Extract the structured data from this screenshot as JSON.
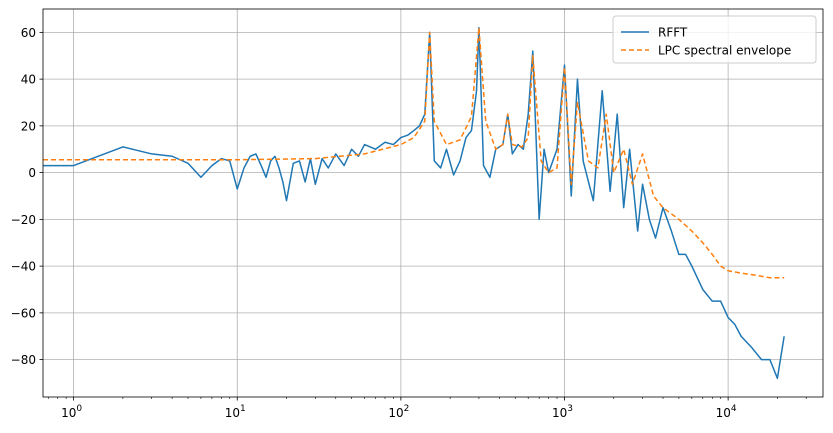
{
  "chart_data": {
    "type": "line",
    "title": "",
    "xlabel": "",
    "ylabel": "",
    "xscale": "log",
    "xlim": [
      0.65,
      38000
    ],
    "ylim": [
      -96,
      70
    ],
    "grid": true,
    "legend_position": "top-right",
    "x_ticks": [
      {
        "value": 1,
        "base": "10",
        "exp": "0"
      },
      {
        "value": 10,
        "base": "10",
        "exp": "1"
      },
      {
        "value": 100,
        "base": "10",
        "exp": "2"
      },
      {
        "value": 1000,
        "base": "10",
        "exp": "3"
      },
      {
        "value": 10000,
        "base": "10",
        "exp": "4"
      }
    ],
    "y_ticks": [
      {
        "value": 60,
        "label": "60"
      },
      {
        "value": 40,
        "label": "40"
      },
      {
        "value": 20,
        "label": "20"
      },
      {
        "value": 0,
        "label": "0"
      },
      {
        "value": -20,
        "label": "−20"
      },
      {
        "value": -40,
        "label": "−40"
      },
      {
        "value": -60,
        "label": "−60"
      },
      {
        "value": -80,
        "label": "−80"
      }
    ],
    "series": [
      {
        "name": "RFFT",
        "color": "#1f77b4",
        "style": "solid",
        "x": [
          0.65,
          1,
          2,
          3,
          4,
          5,
          6,
          7,
          8,
          9,
          10,
          11,
          12,
          13,
          14,
          15,
          16,
          17,
          18,
          19,
          20,
          22,
          24,
          26,
          28,
          30,
          33,
          36,
          40,
          45,
          50,
          55,
          60,
          70,
          80,
          90,
          100,
          110,
          120,
          130,
          140,
          150,
          160,
          175,
          190,
          210,
          230,
          250,
          270,
          290,
          300,
          320,
          350,
          380,
          420,
          450,
          480,
          520,
          560,
          600,
          640,
          700,
          750,
          800,
          900,
          1000,
          1100,
          1200,
          1300,
          1500,
          1700,
          1900,
          2100,
          2300,
          2500,
          2800,
          3000,
          3300,
          3600,
          4000,
          4500,
          5000,
          5500,
          6000,
          7000,
          8000,
          9000,
          10000,
          11000,
          12000,
          14000,
          16000,
          18000,
          20000,
          22000
        ],
        "values": [
          3,
          3,
          11,
          8,
          7,
          4,
          -2,
          3,
          6,
          5,
          -7,
          2,
          7,
          8,
          3,
          -2,
          5,
          7,
          2,
          -4,
          -12,
          4,
          5,
          -4,
          6,
          -5,
          6,
          2,
          8,
          3,
          10,
          7,
          12,
          10,
          13,
          12,
          15,
          16,
          18,
          20,
          25,
          60,
          5,
          2,
          10,
          -1,
          5,
          15,
          18,
          35,
          62,
          3,
          -2,
          10,
          12,
          25,
          8,
          12,
          10,
          25,
          52,
          -20,
          10,
          0,
          10,
          46,
          -10,
          40,
          5,
          -12,
          35,
          -8,
          25,
          -15,
          10,
          -25,
          -5,
          -20,
          -28,
          -15,
          -25,
          -35,
          -35,
          -40,
          -50,
          -55,
          -55,
          -62,
          -65,
          -70,
          -75,
          -80,
          -80,
          -88,
          -70
        ]
      },
      {
        "name": "LPC spectral envelope",
        "color": "#ff7f0e",
        "style": "dashed",
        "x": [
          0.65,
          10,
          30,
          60,
          100,
          120,
          140,
          150,
          160,
          190,
          230,
          270,
          300,
          330,
          380,
          420,
          450,
          480,
          550,
          600,
          640,
          720,
          800,
          900,
          1000,
          1100,
          1200,
          1400,
          1600,
          1800,
          2000,
          2300,
          2600,
          3000,
          3500,
          4000,
          5000,
          6000,
          7000,
          8000,
          9000,
          10000,
          12000,
          15000,
          18000,
          22000
        ],
        "values": [
          5.5,
          5.5,
          6,
          8,
          12,
          15,
          22,
          60,
          22,
          12,
          14,
          24,
          62,
          22,
          10,
          12,
          25,
          12,
          11,
          15,
          50,
          5,
          0,
          2,
          45,
          -5,
          30,
          5,
          2,
          25,
          0,
          10,
          -5,
          8,
          -10,
          -15,
          -20,
          -25,
          -30,
          -35,
          -40,
          -42,
          -43,
          -44,
          -45,
          -45
        ]
      }
    ]
  }
}
